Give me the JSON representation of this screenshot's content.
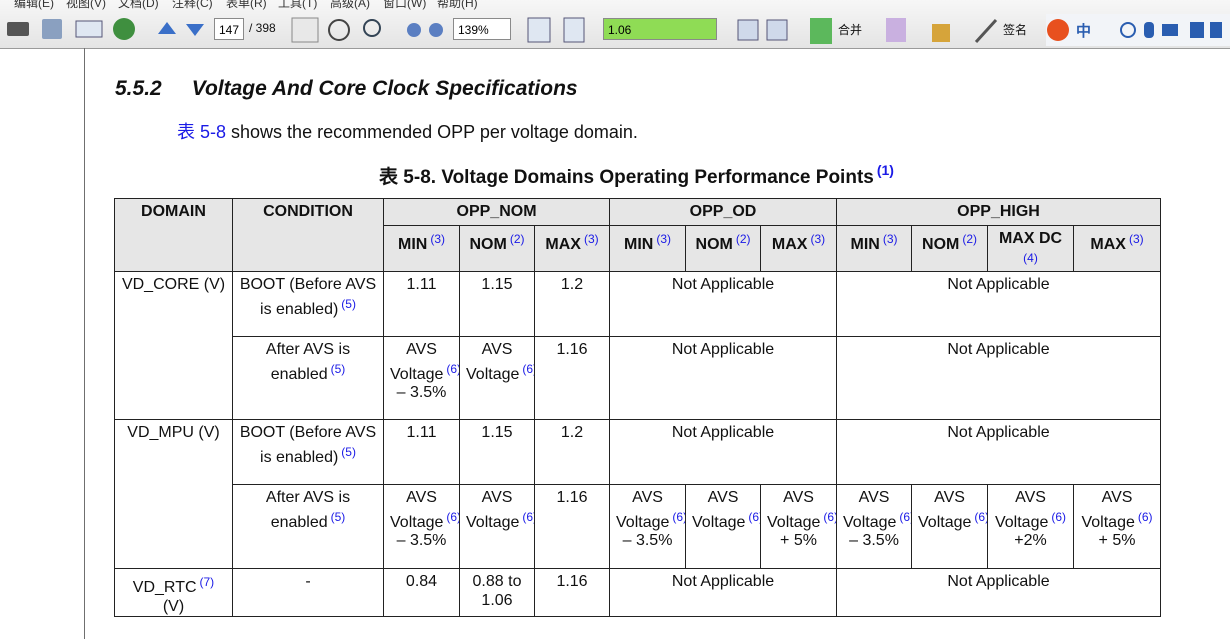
{
  "menu": [
    "编辑(E)",
    "视图(V)",
    "文档(D)",
    "注释(C)",
    "表单(R)",
    "工具(T)",
    "高级(A)",
    "窗口(W)",
    "帮助(H)"
  ],
  "toolbar": {
    "page": "147",
    "page_total": "/ 398",
    "zoom": "139%",
    "search": "1.06",
    "merge": "合并",
    "sign": "签名",
    "ime": "中"
  },
  "section": {
    "number": "5.5.2",
    "title": "Voltage And Core Clock Specifications"
  },
  "intro": {
    "link": "表 5-8",
    "text": " shows the recommended OPP per voltage domain."
  },
  "caption": {
    "text": "表 5-8. Voltage Domains Operating Performance Points",
    "note": "(1)"
  },
  "table": {
    "header": [
      [
        {
          "text": "DOMAIN"
        },
        {
          "text": "CONDITION"
        },
        {
          "text": "OPP_NOM"
        },
        {
          "text": "OPP_OD"
        },
        {
          "text": "OPP_HIGH"
        }
      ],
      [
        {
          "text": "MIN",
          "note": "(3)"
        },
        {
          "text": "NOM",
          "note": "(2)"
        },
        {
          "text": "MAX",
          "note": "(3)"
        },
        {
          "text": "MIN",
          "note": "(3)"
        },
        {
          "text": "NOM",
          "note": "(2)"
        },
        {
          "text": "MAX",
          "note": "(3)"
        },
        {
          "text": "MIN",
          "note": "(3)"
        },
        {
          "text": "NOM",
          "note": "(2)"
        },
        {
          "text": "MAX DC",
          "note": "(4)"
        },
        {
          "text": "MAX",
          "note": "(3)"
        }
      ]
    ],
    "rows": [
      [
        {
          "text": "VD_CORE (V)"
        },
        {
          "text": "BOOT (Before AVS is enabled)",
          "note": "(5)"
        },
        {
          "text": "1.11"
        },
        {
          "text": "1.15"
        },
        {
          "text": "1.2"
        },
        {
          "text": "Not Applicable"
        },
        {
          "text": "Not Applicable"
        }
      ],
      [
        {
          "text": "After AVS is enabled",
          "note": "(5)"
        },
        {
          "text": "AVS Voltage",
          "note": "(6)",
          "after": "– 3.5%"
        },
        {
          "text": "AVS Voltage",
          "note": "(6)"
        },
        {
          "text": "1.16"
        },
        {
          "text": "Not Applicable"
        },
        {
          "text": "Not Applicable"
        }
      ],
      [
        {
          "text": "VD_MPU (V)"
        },
        {
          "text": "BOOT (Before AVS is enabled)",
          "note": "(5)"
        },
        {
          "text": "1.11"
        },
        {
          "text": "1.15"
        },
        {
          "text": "1.2"
        },
        {
          "text": "Not Applicable"
        },
        {
          "text": "Not Applicable"
        }
      ],
      [
        {
          "text": "After AVS is enabled",
          "note": "(5)"
        },
        {
          "text": "AVS Voltage",
          "note": "(6)",
          "after": "– 3.5%"
        },
        {
          "text": "AVS Voltage",
          "note": "(6)"
        },
        {
          "text": "1.16"
        },
        {
          "text": "AVS Voltage",
          "note": "(6)",
          "after": "– 3.5%"
        },
        {
          "text": "AVS Voltage",
          "note": "(6)"
        },
        {
          "text": "AVS Voltage",
          "note": "(6)",
          "after": "+ 5%"
        },
        {
          "text": "AVS Voltage",
          "note": "(6)",
          "after": "– 3.5%"
        },
        {
          "text": "AVS Voltage",
          "note": "(6)"
        },
        {
          "text": "AVS Voltage",
          "note": "(6)",
          "after": "+2%"
        },
        {
          "text": "AVS Voltage",
          "note": "(6)",
          "after": "+ 5%"
        }
      ],
      [
        {
          "text": "VD_RTC",
          "note": "(7)",
          "after": "(V)"
        },
        {
          "text": "-"
        },
        {
          "text": "0.84"
        },
        {
          "text": "0.88 to 1.06"
        },
        {
          "text": "1.16"
        },
        {
          "text": "Not Applicable"
        },
        {
          "text": "Not Applicable"
        }
      ]
    ]
  }
}
